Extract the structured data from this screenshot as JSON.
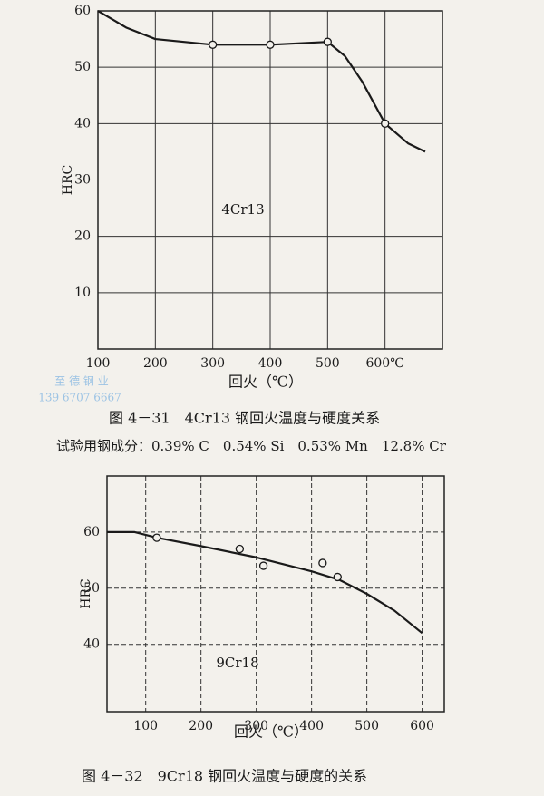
{
  "chart_data": [
    {
      "type": "line",
      "annotation": "4Cr13",
      "ylabel": "HRC",
      "xlabel": "回火（℃）",
      "xlim": [
        100,
        700
      ],
      "xticks": [
        100,
        200,
        300,
        400,
        500,
        {
          "value": 600,
          "label": "600℃"
        }
      ],
      "ylim": [
        0,
        60
      ],
      "yticks": [
        10,
        20,
        30,
        40,
        50,
        60
      ],
      "grid": true,
      "grid_dashed": false,
      "color": "#1a1a1a",
      "x": [
        100,
        150,
        200,
        300,
        400,
        500,
        530,
        560,
        600,
        640,
        670
      ],
      "values": [
        60,
        57,
        55,
        54,
        54,
        54.5,
        52,
        47.5,
        40,
        36.5,
        35
      ],
      "points": {
        "x": [
          300,
          400,
          500,
          600
        ],
        "values": [
          54,
          54,
          54.5,
          40
        ]
      }
    },
    {
      "type": "line",
      "annotation": "9Cr18",
      "ylabel": "HRC",
      "xlabel": "回火（℃）",
      "xlim": [
        30,
        640
      ],
      "xticks": [
        100,
        200,
        300,
        400,
        500,
        600
      ],
      "ylim": [
        28,
        70
      ],
      "yticks": [
        40,
        50,
        60
      ],
      "grid": true,
      "grid_dashed": true,
      "color": "#1a1a1a",
      "x": [
        30,
        80,
        120,
        200,
        300,
        400,
        450,
        500,
        550,
        600
      ],
      "values": [
        60,
        60,
        59,
        57.5,
        55.5,
        53,
        51.5,
        49,
        46,
        42
      ],
      "points": {
        "x": [
          120,
          270,
          313,
          420,
          447
        ],
        "values": [
          59,
          57,
          54,
          54.5,
          52
        ]
      }
    }
  ],
  "captions": {
    "figure_4_31": "图 4－31　4Cr13 钢回火温度与硬度关系",
    "composition": "试验用钢成分：0.39% C　0.54% Si　0.53% Mn　12.8% Cr",
    "figure_4_32": "图 4－32　9Cr18 钢回火温度与硬度的关系"
  },
  "watermark": {
    "name": "至 德 钢 业",
    "phone": "139 6707 6667"
  }
}
